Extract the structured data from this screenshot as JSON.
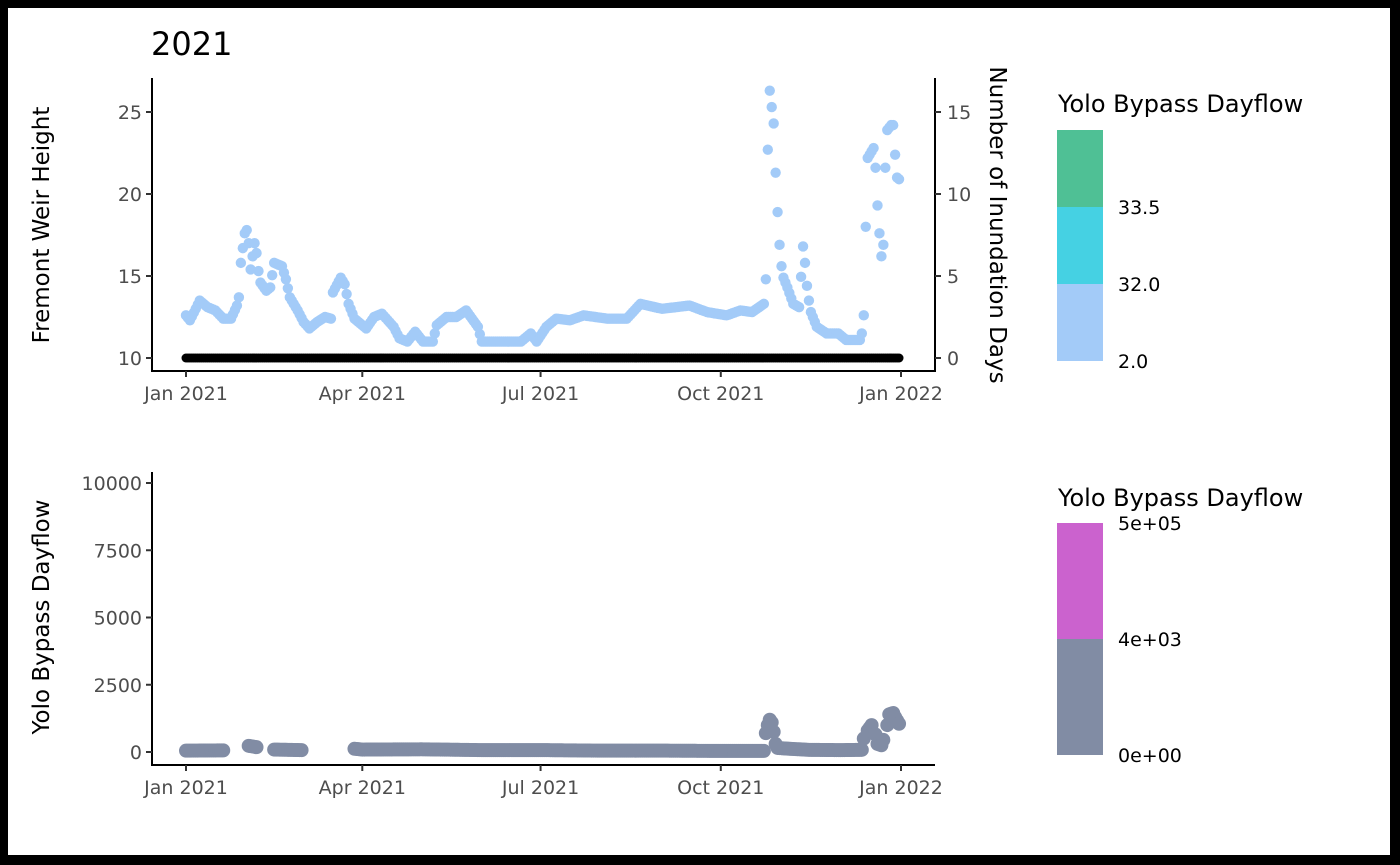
{
  "chart_data": [
    {
      "type": "scatter",
      "title": "2021",
      "ylabel": "Fremont Weir Height",
      "y2label": "Number of Inundation Days",
      "xlim": [
        "2021-01-01",
        "2022-01-01"
      ],
      "ylim": [
        10,
        25
      ],
      "y2lim": [
        0,
        15
      ],
      "x_ticks": [
        {
          "date": "2021-01-01",
          "label": "Jan 2021"
        },
        {
          "date": "2021-04-01",
          "label": "Apr 2021"
        },
        {
          "date": "2021-07-01",
          "label": "Jul 2021"
        },
        {
          "date": "2021-10-01",
          "label": "Oct 2021"
        },
        {
          "date": "2022-01-01",
          "label": "Jan 2022"
        }
      ],
      "y_ticks": [
        "10",
        "15",
        "20",
        "25"
      ],
      "y2_ticks": [
        "0",
        "5",
        "10",
        "15"
      ],
      "grid": false,
      "series": [
        {
          "color": "#A3CBF8",
          "points": [
            [
              "2021-01-01",
              12.6
            ],
            [
              "2021-01-03",
              12.3
            ],
            [
              "2021-01-06",
              13.0
            ],
            [
              "2021-01-08",
              13.5
            ],
            [
              "2021-01-12",
              13.1
            ],
            [
              "2021-01-16",
              12.9
            ],
            [
              "2021-01-20",
              12.4
            ],
            [
              "2021-01-24",
              12.4
            ],
            [
              "2021-01-27",
              13.2
            ],
            [
              "2021-01-28",
              13.7
            ],
            [
              "2021-01-29",
              15.8
            ],
            [
              "2021-01-31",
              17.6
            ],
            [
              "2021-02-01",
              17.8
            ],
            [
              "2021-02-02",
              17.0
            ],
            [
              "2021-02-03",
              15.4
            ],
            [
              "2021-02-05",
              17.0
            ],
            [
              "2021-02-06",
              16.4
            ],
            [
              "2021-02-07",
              15.3
            ],
            [
              "2021-02-08",
              14.6
            ],
            [
              "2021-02-11",
              14.1
            ],
            [
              "2021-02-13",
              14.3
            ],
            [
              "2021-02-15",
              15.8
            ],
            [
              "2021-02-19",
              15.6
            ],
            [
              "2021-02-21",
              14.8
            ],
            [
              "2021-02-23",
              13.7
            ],
            [
              "2021-02-27",
              12.9
            ],
            [
              "2021-03-02",
              12.2
            ],
            [
              "2021-03-05",
              11.8
            ],
            [
              "2021-03-09",
              12.2
            ],
            [
              "2021-03-13",
              12.5
            ],
            [
              "2021-03-16",
              12.4
            ],
            [
              "2021-03-17",
              14.0
            ],
            [
              "2021-03-21",
              14.9
            ],
            [
              "2021-03-23",
              14.5
            ],
            [
              "2021-03-25",
              13.3
            ],
            [
              "2021-03-28",
              12.4
            ],
            [
              "2021-04-03",
              11.8
            ],
            [
              "2021-04-07",
              12.5
            ],
            [
              "2021-04-11",
              12.7
            ],
            [
              "2021-04-17",
              11.9
            ],
            [
              "2021-04-20",
              11.2
            ],
            [
              "2021-04-24",
              11.0
            ],
            [
              "2021-04-28",
              11.6
            ],
            [
              "2021-05-02",
              11.0
            ],
            [
              "2021-05-07",
              11.0
            ],
            [
              "2021-05-09",
              12.0
            ],
            [
              "2021-05-14",
              12.5
            ],
            [
              "2021-05-19",
              12.5
            ],
            [
              "2021-05-24",
              12.9
            ],
            [
              "2021-05-30",
              11.9
            ],
            [
              "2021-06-01",
              11.0
            ],
            [
              "2021-06-10",
              11.0
            ],
            [
              "2021-06-21",
              11.0
            ],
            [
              "2021-06-26",
              11.5
            ],
            [
              "2021-06-29",
              11.0
            ],
            [
              "2021-07-04",
              11.9
            ],
            [
              "2021-07-09",
              12.4
            ],
            [
              "2021-07-16",
              12.3
            ],
            [
              "2021-07-23",
              12.6
            ],
            [
              "2021-08-04",
              12.4
            ],
            [
              "2021-08-14",
              12.4
            ],
            [
              "2021-08-21",
              13.3
            ],
            [
              "2021-09-01",
              13.0
            ],
            [
              "2021-09-15",
              13.2
            ],
            [
              "2021-09-24",
              12.8
            ],
            [
              "2021-10-04",
              12.6
            ],
            [
              "2021-10-11",
              12.9
            ],
            [
              "2021-10-17",
              12.8
            ],
            [
              "2021-10-23",
              13.3
            ],
            [
              "2021-10-24",
              14.8
            ],
            [
              "2021-10-25",
              22.7
            ],
            [
              "2021-10-26",
              26.3
            ],
            [
              "2021-10-28",
              24.3
            ],
            [
              "2021-10-29",
              21.3
            ],
            [
              "2021-10-30",
              18.9
            ],
            [
              "2021-10-31",
              16.9
            ],
            [
              "2021-11-01",
              15.6
            ],
            [
              "2021-11-02",
              14.9
            ],
            [
              "2021-11-04",
              14.3
            ],
            [
              "2021-11-07",
              13.3
            ],
            [
              "2021-11-10",
              13.1
            ],
            [
              "2021-11-12",
              16.8
            ],
            [
              "2021-11-13",
              15.8
            ],
            [
              "2021-11-14",
              14.4
            ],
            [
              "2021-11-15",
              13.5
            ],
            [
              "2021-11-16",
              12.8
            ],
            [
              "2021-11-19",
              11.9
            ],
            [
              "2021-11-24",
              11.5
            ],
            [
              "2021-11-30",
              11.5
            ],
            [
              "2021-12-04",
              11.1
            ],
            [
              "2021-12-11",
              11.1
            ],
            [
              "2021-12-12",
              11.5
            ],
            [
              "2021-12-13",
              12.6
            ],
            [
              "2021-12-14",
              18.0
            ],
            [
              "2021-12-15",
              22.2
            ],
            [
              "2021-12-17",
              22.6
            ],
            [
              "2021-12-18",
              22.8
            ],
            [
              "2021-12-19",
              21.6
            ],
            [
              "2021-12-20",
              19.3
            ],
            [
              "2021-12-21",
              17.6
            ],
            [
              "2021-12-22",
              16.2
            ],
            [
              "2021-12-23",
              16.9
            ],
            [
              "2021-12-24",
              21.6
            ],
            [
              "2021-12-25",
              23.9
            ],
            [
              "2021-12-27",
              24.2
            ],
            [
              "2021-12-28",
              24.2
            ],
            [
              "2021-12-29",
              22.4
            ],
            [
              "2021-12-30",
              21.0
            ],
            [
              "2021-12-31",
              20.9
            ]
          ]
        },
        {
          "axis": "right",
          "color": "#000000",
          "start": "2021-01-01",
          "end": "2021-12-31",
          "value": 0
        }
      ],
      "legend": {
        "title": "Yolo Bypass Dayflow",
        "position": "right",
        "bins": [
          {
            "color": "#4FC095",
            "label": ""
          },
          {
            "color": "#45D1E3",
            "label": "33.5"
          },
          {
            "color": "#A3CBF8",
            "label": "32.0"
          }
        ],
        "bottom_label": "2.0"
      }
    },
    {
      "type": "scatter",
      "ylabel": "Yolo Bypass Dayflow",
      "xlim": [
        "2021-01-01",
        "2022-01-01"
      ],
      "ylim": [
        0,
        10000
      ],
      "x_ticks": [
        {
          "date": "2021-01-01",
          "label": "Jan 2021"
        },
        {
          "date": "2021-04-01",
          "label": "Apr 2021"
        },
        {
          "date": "2021-07-01",
          "label": "Jul 2021"
        },
        {
          "date": "2021-10-01",
          "label": "Oct 2021"
        },
        {
          "date": "2022-01-01",
          "label": "Jan 2022"
        }
      ],
      "y_ticks": [
        "0",
        "2500",
        "5000",
        "7500",
        "10000"
      ],
      "grid": false,
      "series": [
        {
          "color": "#818CA4",
          "points": [
            [
              "2021-01-01",
              50
            ],
            [
              "2021-01-20",
              60
            ],
            [
              "2021-02-02",
              230
            ],
            [
              "2021-02-06",
              180
            ],
            [
              "2021-02-15",
              90
            ],
            [
              "2021-03-01",
              70
            ],
            [
              "2021-03-28",
              120
            ],
            [
              "2021-04-01",
              90
            ],
            [
              "2021-05-01",
              100
            ],
            [
              "2021-06-01",
              70
            ],
            [
              "2021-07-01",
              70
            ],
            [
              "2021-08-01",
              50
            ],
            [
              "2021-09-01",
              50
            ],
            [
              "2021-10-01",
              40
            ],
            [
              "2021-10-23",
              40
            ],
            [
              "2021-10-24",
              700
            ],
            [
              "2021-10-25",
              1000
            ],
            [
              "2021-10-26",
              1200
            ],
            [
              "2021-10-27",
              1100
            ],
            [
              "2021-10-28",
              750
            ],
            [
              "2021-10-29",
              300
            ],
            [
              "2021-10-30",
              150
            ],
            [
              "2021-11-05",
              120
            ],
            [
              "2021-11-15",
              80
            ],
            [
              "2021-12-01",
              70
            ],
            [
              "2021-12-12",
              80
            ],
            [
              "2021-12-13",
              500
            ],
            [
              "2021-12-15",
              800
            ],
            [
              "2021-12-17",
              1000
            ],
            [
              "2021-12-19",
              650
            ],
            [
              "2021-12-20",
              300
            ],
            [
              "2021-12-22",
              250
            ],
            [
              "2021-12-23",
              450
            ],
            [
              "2021-12-25",
              1000
            ],
            [
              "2021-12-26",
              1400
            ],
            [
              "2021-12-28",
              1450
            ],
            [
              "2021-12-29",
              1300
            ],
            [
              "2021-12-31",
              1050
            ]
          ]
        }
      ],
      "legend": {
        "title": "Yolo Bypass Dayflow",
        "position": "right",
        "bins": [
          {
            "color": "#CB62CE",
            "label": "5e+05"
          },
          {
            "color": "#818CA4",
            "label": "4e+03"
          }
        ],
        "bottom_label": "0e+00"
      }
    }
  ]
}
